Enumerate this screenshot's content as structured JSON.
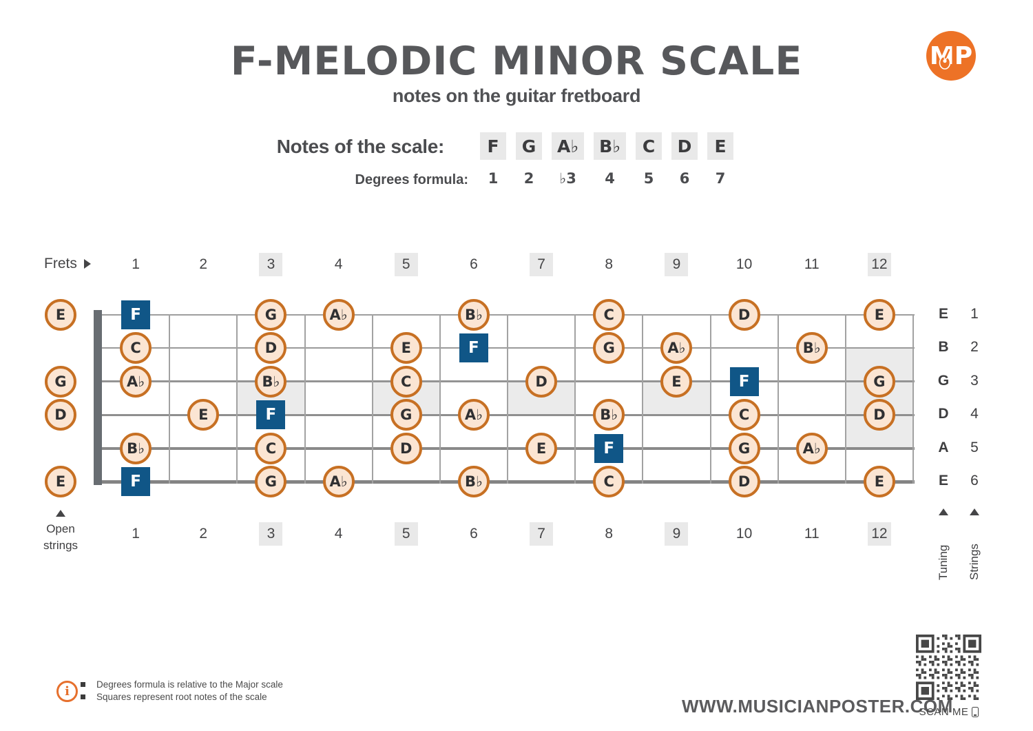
{
  "header": {
    "title": "F-MELODIC MINOR SCALE",
    "subtitle": "notes on the guitar fretboard"
  },
  "logo": {
    "text": "MP"
  },
  "scale": {
    "label": "Notes of the scale:",
    "degrees_label": "Degrees formula:",
    "notes": [
      {
        "note": "F",
        "degree": "1"
      },
      {
        "note": "G",
        "degree": "2"
      },
      {
        "note": "A♭",
        "degree": "♭3"
      },
      {
        "note": "B♭",
        "degree": "4"
      },
      {
        "note": "C",
        "degree": "5"
      },
      {
        "note": "D",
        "degree": "6"
      },
      {
        "note": "E",
        "degree": "7"
      }
    ]
  },
  "fretboard": {
    "frets_label": "Frets",
    "fret_numbers": [
      "1",
      "2",
      "3",
      "4",
      "5",
      "6",
      "7",
      "8",
      "9",
      "10",
      "11",
      "12"
    ],
    "marker_frets": [
      3,
      5,
      7,
      9,
      12
    ],
    "open_strings_label_line1": "Open",
    "open_strings_label_line2": "strings",
    "tuning_label": "Tuning",
    "strings_label": "Strings",
    "strings": [
      {
        "number": "1",
        "tuning": "E",
        "open": "E",
        "notes": [
          {
            "fret": 1,
            "label": "F",
            "root": true
          },
          {
            "fret": 3,
            "label": "G"
          },
          {
            "fret": 4,
            "label": "A♭"
          },
          {
            "fret": 6,
            "label": "B♭"
          },
          {
            "fret": 8,
            "label": "C"
          },
          {
            "fret": 10,
            "label": "D"
          },
          {
            "fret": 12,
            "label": "E"
          }
        ]
      },
      {
        "number": "2",
        "tuning": "B",
        "open": null,
        "notes": [
          {
            "fret": 1,
            "label": "C"
          },
          {
            "fret": 3,
            "label": "D"
          },
          {
            "fret": 5,
            "label": "E"
          },
          {
            "fret": 6,
            "label": "F",
            "root": true
          },
          {
            "fret": 8,
            "label": "G"
          },
          {
            "fret": 9,
            "label": "A♭"
          },
          {
            "fret": 11,
            "label": "B♭"
          }
        ]
      },
      {
        "number": "3",
        "tuning": "G",
        "open": "G",
        "notes": [
          {
            "fret": 1,
            "label": "A♭"
          },
          {
            "fret": 3,
            "label": "B♭"
          },
          {
            "fret": 5,
            "label": "C"
          },
          {
            "fret": 7,
            "label": "D"
          },
          {
            "fret": 9,
            "label": "E"
          },
          {
            "fret": 10,
            "label": "F",
            "root": true
          },
          {
            "fret": 12,
            "label": "G"
          }
        ]
      },
      {
        "number": "4",
        "tuning": "D",
        "open": "D",
        "notes": [
          {
            "fret": 2,
            "label": "E"
          },
          {
            "fret": 3,
            "label": "F",
            "root": true
          },
          {
            "fret": 5,
            "label": "G"
          },
          {
            "fret": 6,
            "label": "A♭"
          },
          {
            "fret": 8,
            "label": "B♭"
          },
          {
            "fret": 10,
            "label": "C"
          },
          {
            "fret": 12,
            "label": "D"
          }
        ]
      },
      {
        "number": "5",
        "tuning": "A",
        "open": null,
        "notes": [
          {
            "fret": 1,
            "label": "B♭"
          },
          {
            "fret": 3,
            "label": "C"
          },
          {
            "fret": 5,
            "label": "D"
          },
          {
            "fret": 7,
            "label": "E"
          },
          {
            "fret": 8,
            "label": "F",
            "root": true
          },
          {
            "fret": 10,
            "label": "G"
          },
          {
            "fret": 11,
            "label": "A♭"
          }
        ]
      },
      {
        "number": "6",
        "tuning": "E",
        "open": "E",
        "notes": [
          {
            "fret": 1,
            "label": "F",
            "root": true
          },
          {
            "fret": 3,
            "label": "G"
          },
          {
            "fret": 4,
            "label": "A♭"
          },
          {
            "fret": 6,
            "label": "B♭"
          },
          {
            "fret": 8,
            "label": "C"
          },
          {
            "fret": 10,
            "label": "D"
          },
          {
            "fret": 12,
            "label": "E"
          }
        ]
      }
    ]
  },
  "footer": {
    "info_icon_glyph": "i",
    "disclaimers": [
      "Degrees formula is relative to the Major scale",
      "Squares represent root notes of the scale"
    ],
    "website": "WWW.MUSICIANPOSTER.COM",
    "scan_me": "SCAN ME"
  },
  "colors": {
    "accent_orange": "#ed7226",
    "note_border_orange": "#c77023",
    "note_fill": "#fbe5d3",
    "root_blue": "#105687",
    "title_gray": "#57585b",
    "box_gray": "#e9e9e9",
    "string_gray": "#949494"
  }
}
